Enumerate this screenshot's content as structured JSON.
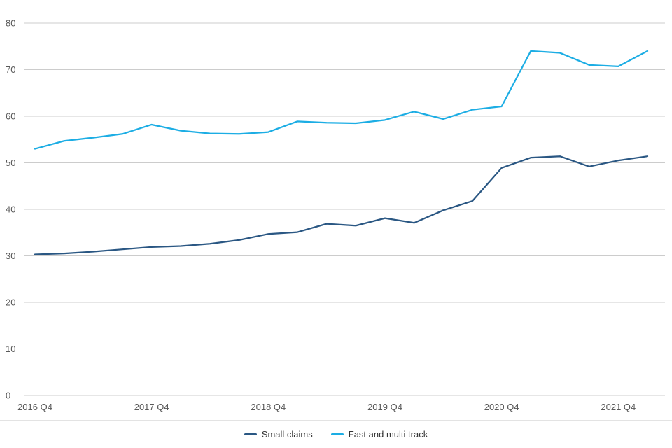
{
  "chart_data": {
    "type": "line",
    "title": "",
    "xlabel": "",
    "ylabel": "",
    "categories": [
      "2016 Q4",
      "2017 Q1",
      "2017 Q2",
      "2017 Q3",
      "2017 Q4",
      "2018 Q1",
      "2018 Q2",
      "2018 Q3",
      "2018 Q4",
      "2019 Q1",
      "2019 Q2",
      "2019 Q3",
      "2019 Q4",
      "2020 Q1",
      "2020 Q2",
      "2020 Q3",
      "2020 Q4",
      "2021 Q1",
      "2021 Q2",
      "2021 Q3",
      "2021 Q4",
      "2022 Q1"
    ],
    "x_tick_labels": [
      "2016 Q4",
      "2017 Q4",
      "2018 Q4",
      "2019 Q4",
      "2020 Q4",
      "2021 Q4"
    ],
    "series": [
      {
        "name": "Small claims",
        "color": "#2a5783",
        "values": [
          30.3,
          30.5,
          30.9,
          31.4,
          31.9,
          32.1,
          32.6,
          33.4,
          34.7,
          35.1,
          36.9,
          36.5,
          38.1,
          37.1,
          39.8,
          41.8,
          48.9,
          51.1,
          51.4,
          49.2,
          50.5,
          51.4
        ]
      },
      {
        "name": "Fast and multi track",
        "color": "#1cade4",
        "values": [
          53.0,
          54.7,
          55.4,
          56.2,
          58.2,
          56.9,
          56.3,
          56.2,
          56.6,
          58.9,
          58.6,
          58.5,
          59.2,
          61.0,
          59.4,
          61.4,
          62.1,
          74.0,
          73.6,
          71.0,
          70.7,
          74.0
        ]
      }
    ],
    "ylim": [
      0,
      80
    ],
    "y_ticks": [
      0,
      10,
      20,
      30,
      40,
      50,
      60,
      70,
      80
    ],
    "grid": "horizontal",
    "legend_position": "bottom",
    "gridline_color": "#cccccc",
    "axis_text_color": "#595959"
  }
}
